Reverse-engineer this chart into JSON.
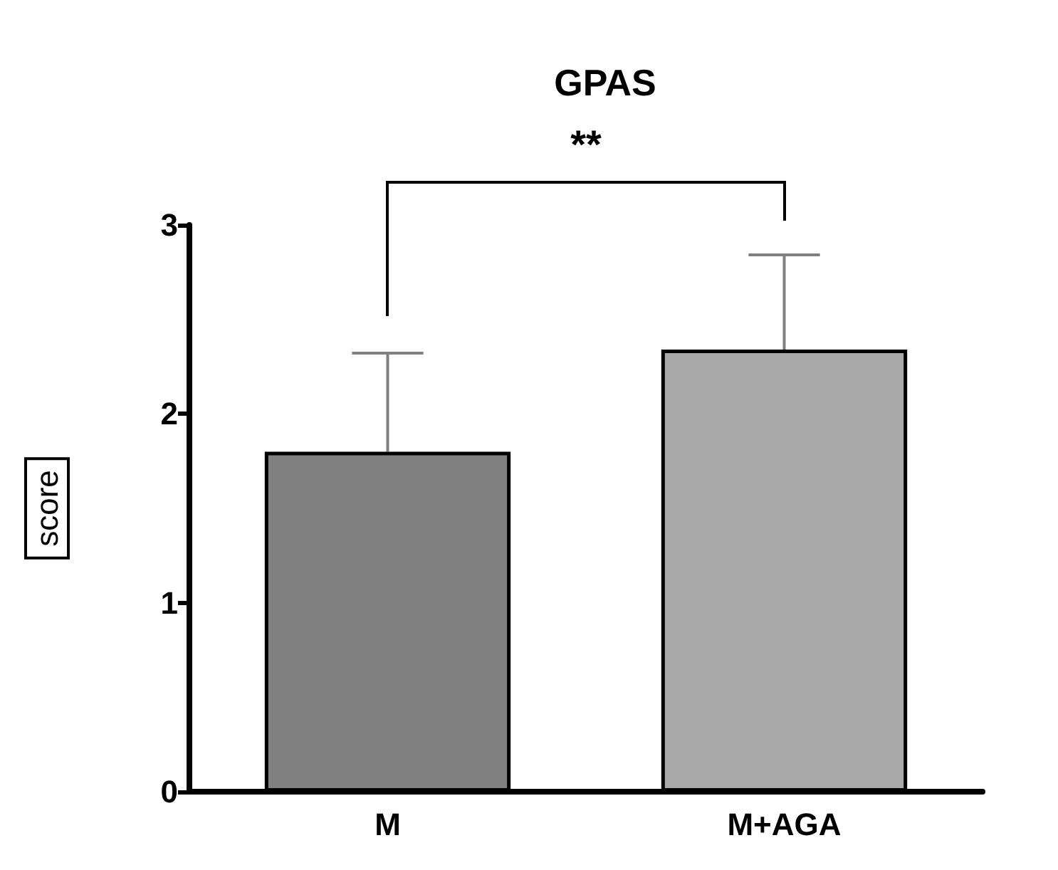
{
  "chart_data": {
    "type": "bar",
    "title": "GPAS",
    "ylabel": "score",
    "categories": [
      "M",
      "M+AGA"
    ],
    "values": [
      1.8,
      2.34
    ],
    "colors": [
      "#808080",
      "#a9a9a9"
    ],
    "errors": [
      [
        1.8,
        2.32
      ],
      [
        2.34,
        2.84
      ]
    ],
    "ylim": [
      0,
      3
    ],
    "yticks": [
      0,
      1,
      2,
      3
    ],
    "grid": false,
    "annotations": [
      "**"
    ]
  }
}
